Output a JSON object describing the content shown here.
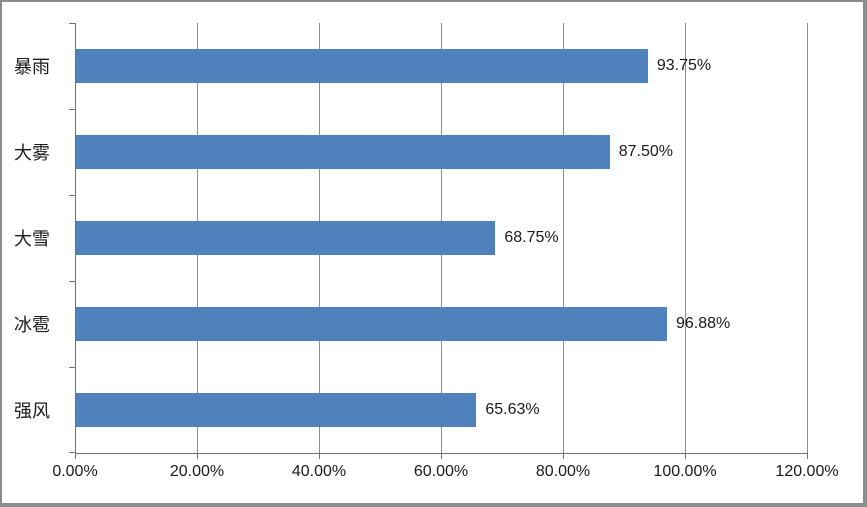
{
  "chart_data": {
    "type": "bar",
    "orientation": "horizontal",
    "title": "",
    "xlabel": "",
    "ylabel": "",
    "categories": [
      "暴雨",
      "大雾",
      "大雪",
      "冰雹",
      "强风"
    ],
    "values": [
      93.75,
      87.5,
      68.75,
      96.88,
      65.63
    ],
    "value_labels": [
      "93.75%",
      "87.50%",
      "68.75%",
      "96.88%",
      "65.63%"
    ],
    "xlim": [
      0,
      120
    ],
    "x_tick_values": [
      0,
      20,
      40,
      60,
      80,
      100,
      120
    ],
    "x_tick_labels": [
      "0.00%",
      "20.00%",
      "40.00%",
      "60.00%",
      "80.00%",
      "100.00%",
      "120.00%"
    ],
    "grid": true,
    "legend_position": "none",
    "colors": {
      "bar": "#4F81BD",
      "gridline": "#8C8C8C",
      "axis": "#707070",
      "frame_border": "#8C8C8C",
      "background": "#FFFFFF",
      "text": "#1A1A1A"
    }
  }
}
